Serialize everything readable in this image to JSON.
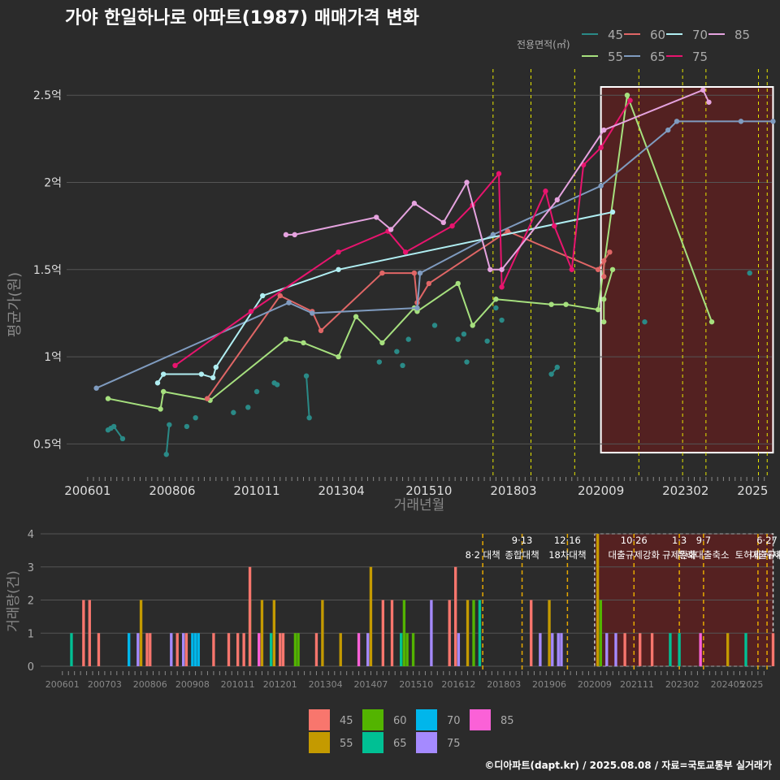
{
  "title": "가야 한일하나로 아파트(1987) 매매가격 변화",
  "footer": "©디아파트(dapt.kr) / 2025.08.08 / 자료=국토교통부 실거래가",
  "colors": {
    "background": "#2b2b2b",
    "grid": "#555555",
    "policy_line_top": "#e6e600",
    "policy_line_bottom": "#e6a800",
    "highlight_fill": "#5a2020",
    "highlight_border_top": "#ffffff",
    "highlight_border_bottom": "#cccccc"
  },
  "chart_data": [
    {
      "type": "line",
      "title": "가야 한일하나로 아파트(1987) 매매가격 변화",
      "xlabel": "거래년월",
      "ylabel": "평균가(원)",
      "x_ticks": [
        "200601",
        "200806",
        "201011",
        "201304",
        "201510",
        "201803",
        "202009",
        "202302",
        "2025"
      ],
      "y_ticks": [
        "0.5억",
        "1억",
        "1.5억",
        "2억",
        "2.5억"
      ],
      "ylim": [
        0.32,
        2.65
      ],
      "legend_title": "전용면적(㎡)",
      "legend_position": "top-right",
      "grid": true,
      "highlight_x": [
        "2020-09",
        "2025-08"
      ],
      "series": [
        {
          "name": "45",
          "color": "#2a8a87",
          "lines": [
            [
              [
                "2006-08",
                0.58
              ],
              [
                "2006-09",
                0.59
              ],
              [
                "2006-10",
                0.6
              ],
              [
                "2007-01",
                0.53
              ]
            ],
            [
              [
                "2008-04",
                0.44
              ],
              [
                "2008-05",
                0.61
              ]
            ],
            [
              [
                "2012-04",
                0.89
              ],
              [
                "2012-05",
                0.65
              ]
            ],
            [
              [
                "2019-04",
                0.9
              ],
              [
                "2019-06",
                0.94
              ]
            ]
          ],
          "points": [
            [
              "2008-11",
              0.6
            ],
            [
              "2009-02",
              0.65
            ],
            [
              "2010-03",
              0.68
            ],
            [
              "2010-08",
              0.71
            ],
            [
              "2010-11",
              0.8
            ],
            [
              "2011-05",
              0.85
            ],
            [
              "2011-06",
              0.84
            ],
            [
              "2014-05",
              0.97
            ],
            [
              "2014-11",
              1.03
            ],
            [
              "2015-01",
              0.95
            ],
            [
              "2015-03",
              1.1
            ],
            [
              "2015-12",
              1.18
            ],
            [
              "2016-08",
              1.1
            ],
            [
              "2016-10",
              1.13
            ],
            [
              "2016-11",
              0.97
            ],
            [
              "2017-06",
              1.09
            ],
            [
              "2017-09",
              1.28
            ],
            [
              "2017-11",
              1.21
            ],
            [
              "2021-12",
              1.2
            ],
            [
              "2024-12",
              1.48
            ]
          ]
        },
        {
          "name": "55",
          "color": "#a6e07e",
          "lines": [
            [
              [
                "2006-08",
                0.76
              ],
              [
                "2008-02",
                0.7
              ],
              [
                "2008-03",
                0.8
              ],
              [
                "2009-07",
                0.75
              ],
              [
                "2011-09",
                1.1
              ],
              [
                "2012-03",
                1.08
              ],
              [
                "2013-03",
                1.0
              ],
              [
                "2013-09",
                1.23
              ],
              [
                "2014-06",
                1.08
              ],
              [
                "2015-05",
                1.28
              ],
              [
                "2015-06",
                1.26
              ],
              [
                "2016-08",
                1.42
              ],
              [
                "2017-01",
                1.18
              ],
              [
                "2017-09",
                1.33
              ],
              [
                "2019-04",
                1.3
              ],
              [
                "2019-09",
                1.3
              ],
              [
                "2020-08",
                1.27
              ],
              [
                "2021-06",
                2.5
              ],
              [
                "2023-11",
                1.2
              ]
            ],
            [
              [
                "2020-10",
                1.2
              ],
              [
                "2020-10",
                1.33
              ],
              [
                "2021-01",
                1.5
              ]
            ]
          ],
          "points": []
        },
        {
          "name": "60",
          "color": "#e06666",
          "lines": [
            [
              [
                "2009-06",
                0.76
              ],
              [
                "2011-07",
                1.35
              ],
              [
                "2012-06",
                1.26
              ],
              [
                "2012-09",
                1.15
              ],
              [
                "2014-06",
                1.48
              ],
              [
                "2015-05",
                1.48
              ],
              [
                "2015-06",
                1.31
              ],
              [
                "2015-10",
                1.42
              ],
              [
                "2018-01",
                1.72
              ],
              [
                "2020-08",
                1.5
              ],
              [
                "2020-12",
                1.6
              ]
            ],
            [
              [
                "2020-10",
                1.46
              ],
              [
                "2020-10",
                1.55
              ]
            ]
          ],
          "points": []
        },
        {
          "name": "65",
          "color": "#7f9bbf",
          "lines": [
            [
              [
                "2006-04",
                0.82
              ],
              [
                "2011-10",
                1.31
              ],
              [
                "2012-06",
                1.25
              ],
              [
                "2015-06",
                1.28
              ],
              [
                "2015-07",
                1.48
              ],
              [
                "2017-08",
                1.7
              ],
              [
                "2020-09",
                1.98
              ],
              [
                "2022-08",
                2.3
              ],
              [
                "2022-11",
                2.35
              ],
              [
                "2024-09",
                2.35
              ],
              [
                "2025-08",
                2.35
              ]
            ]
          ],
          "points": []
        },
        {
          "name": "70",
          "color": "#b0eef2",
          "lines": [
            [
              [
                "2008-01",
                0.85
              ],
              [
                "2008-03",
                0.9
              ],
              [
                "2009-04",
                0.9
              ],
              [
                "2009-08",
                0.88
              ],
              [
                "2009-09",
                0.94
              ],
              [
                "2011-01",
                1.35
              ],
              [
                "2013-03",
                1.5
              ],
              [
                "2021-01",
                1.83
              ]
            ]
          ],
          "points": []
        },
        {
          "name": "75",
          "color": "#e8146e",
          "lines": [
            [
              [
                "2008-07",
                0.95
              ],
              [
                "2010-09",
                1.26
              ],
              [
                "2013-03",
                1.6
              ],
              [
                "2014-08",
                1.72
              ],
              [
                "2015-02",
                1.6
              ],
              [
                "2016-06",
                1.75
              ],
              [
                "2017-01",
                1.87
              ],
              [
                "2017-10",
                2.05
              ],
              [
                "2017-11",
                1.4
              ],
              [
                "2019-02",
                1.95
              ],
              [
                "2019-05",
                1.75
              ],
              [
                "2019-11",
                1.5
              ],
              [
                "2020-03",
                2.1
              ],
              [
                "2020-09",
                2.2
              ],
              [
                "2021-07",
                2.47
              ]
            ]
          ],
          "points": []
        },
        {
          "name": "85",
          "color": "#e5a3df",
          "lines": [
            [
              [
                "2011-09",
                1.7
              ],
              [
                "2011-12",
                1.7
              ],
              [
                "2014-04",
                1.8
              ],
              [
                "2014-09",
                1.73
              ],
              [
                "2015-05",
                1.88
              ],
              [
                "2016-03",
                1.77
              ],
              [
                "2016-11",
                2.0
              ],
              [
                "2017-07",
                1.5
              ],
              [
                "2017-11",
                1.5
              ],
              [
                "2019-06",
                1.9
              ],
              [
                "2020-10",
                2.3
              ],
              [
                "2023-08",
                2.53
              ],
              [
                "2023-10",
                2.46
              ]
            ]
          ],
          "points": []
        }
      ],
      "policy_lines_x": [
        "2017-08",
        "2018-09",
        "2019-12",
        "2021-10",
        "2023-01",
        "2023-09",
        "2025-03",
        "2025-06"
      ]
    },
    {
      "type": "bar",
      "xlabel": "",
      "ylabel": "거래량(건)",
      "x_ticks": [
        "200601",
        "200703",
        "200806",
        "200908",
        "201011",
        "201201",
        "201304",
        "201407",
        "201510",
        "201612",
        "201803",
        "201906",
        "202009",
        "202111",
        "202302",
        "202405",
        "2025"
      ],
      "y_ticks": [
        "0",
        "1",
        "2",
        "3",
        "4"
      ],
      "ylim": [
        0,
        4
      ],
      "legend_position": "bottom",
      "grid": true,
      "highlight_x": [
        "2020-09",
        "2025-08"
      ],
      "legend": [
        {
          "name": "45",
          "color": "#f8766d"
        },
        {
          "name": "60",
          "color": "#53b400"
        },
        {
          "name": "70",
          "color": "#00b6eb"
        },
        {
          "name": "85",
          "color": "#fb61d7"
        },
        {
          "name": "55",
          "color": "#c49a00"
        },
        {
          "name": "65",
          "color": "#00c094"
        },
        {
          "name": "75",
          "color": "#a58aff"
        }
      ],
      "bars": [
        [
          "2006-04",
          1,
          "65"
        ],
        [
          "2006-08",
          2,
          "45"
        ],
        [
          "2006-10",
          2,
          "45"
        ],
        [
          "2007-01",
          1,
          "45"
        ],
        [
          "2007-11",
          1,
          "70"
        ],
        [
          "2008-02",
          1,
          "75"
        ],
        [
          "2008-03",
          2,
          "55"
        ],
        [
          "2008-05",
          1,
          "45"
        ],
        [
          "2008-06",
          1,
          "45"
        ],
        [
          "2009-01",
          1,
          "75"
        ],
        [
          "2009-03",
          1,
          "45"
        ],
        [
          "2009-05",
          1,
          "75"
        ],
        [
          "2009-06",
          1,
          "45"
        ],
        [
          "2009-08",
          1,
          "70"
        ],
        [
          "2009-09",
          1,
          "70"
        ],
        [
          "2009-10",
          1,
          "70"
        ],
        [
          "2010-03",
          1,
          "45"
        ],
        [
          "2010-08",
          1,
          "45"
        ],
        [
          "2010-11",
          1,
          "45"
        ],
        [
          "2011-01",
          1,
          "45"
        ],
        [
          "2011-03",
          2,
          "60"
        ],
        [
          "2011-03",
          3,
          "45"
        ],
        [
          "2011-06",
          1,
          "85"
        ],
        [
          "2011-07",
          2,
          "55"
        ],
        [
          "2011-10",
          1,
          "65"
        ],
        [
          "2011-11",
          2,
          "55"
        ],
        [
          "2012-01",
          1,
          "45"
        ],
        [
          "2012-02",
          1,
          "45"
        ],
        [
          "2012-06",
          1,
          "60"
        ],
        [
          "2012-07",
          1,
          "60"
        ],
        [
          "2013-01",
          1,
          "45"
        ],
        [
          "2013-03",
          2,
          "55"
        ],
        [
          "2013-09",
          1,
          "55"
        ],
        [
          "2014-03",
          1,
          "85"
        ],
        [
          "2014-06",
          1,
          "75"
        ],
        [
          "2014-07",
          3,
          "55"
        ],
        [
          "2014-11",
          2,
          "45"
        ],
        [
          "2015-02",
          2,
          "45"
        ],
        [
          "2015-05",
          1,
          "65"
        ],
        [
          "2015-06",
          2,
          "60"
        ],
        [
          "2015-07",
          1,
          "60"
        ],
        [
          "2015-09",
          1,
          "60"
        ],
        [
          "2016-03",
          2,
          "75"
        ],
        [
          "2016-09",
          2,
          "45"
        ],
        [
          "2016-11",
          3,
          "45"
        ],
        [
          "2016-12",
          1,
          "75"
        ],
        [
          "2017-03",
          2,
          "55"
        ],
        [
          "2017-05",
          2,
          "60"
        ],
        [
          "2017-07",
          2,
          "65"
        ],
        [
          "2018-12",
          2,
          "45"
        ],
        [
          "2019-03",
          1,
          "75"
        ],
        [
          "2019-06",
          2,
          "55"
        ],
        [
          "2019-07",
          1,
          "75"
        ],
        [
          "2019-09",
          1,
          "75"
        ],
        [
          "2019-10",
          1,
          "75"
        ],
        [
          "2020-10",
          4,
          "55"
        ],
        [
          "2020-11",
          2,
          "60"
        ],
        [
          "2021-01",
          1,
          "75"
        ],
        [
          "2021-04",
          1,
          "75"
        ],
        [
          "2021-07",
          1,
          "45"
        ],
        [
          "2021-12",
          1,
          "45"
        ],
        [
          "2022-04",
          1,
          "45"
        ],
        [
          "2022-10",
          1,
          "65"
        ],
        [
          "2023-01",
          1,
          "65"
        ],
        [
          "2023-08",
          1,
          "85"
        ],
        [
          "2024-05",
          1,
          "55"
        ],
        [
          "2024-11",
          1,
          "65"
        ],
        [
          "2025-08",
          1,
          "45"
        ]
      ],
      "policies": [
        {
          "date": "2017-08",
          "label_top": "",
          "label_bottom": "8·2 대책"
        },
        {
          "date": "2018-09",
          "label_top": "9·13",
          "label_bottom": "종합대책"
        },
        {
          "date": "2019-12",
          "label_top": "12·16",
          "label_bottom": "18차대책"
        },
        {
          "date": "2021-10",
          "label_top": "10·26",
          "label_bottom": "대출규제강화"
        },
        {
          "date": "2023-01",
          "label_top": "1·3",
          "label_bottom": "규제완화"
        },
        {
          "date": "2023-09",
          "label_top": "9·7",
          "label_bottom": "특례대출축소"
        },
        {
          "date": "2025-03",
          "label_top": "",
          "label_bottom": "토허제 해제"
        },
        {
          "date": "2025-06",
          "label_top": "6·27",
          "label_bottom": "대출규제"
        }
      ]
    }
  ]
}
